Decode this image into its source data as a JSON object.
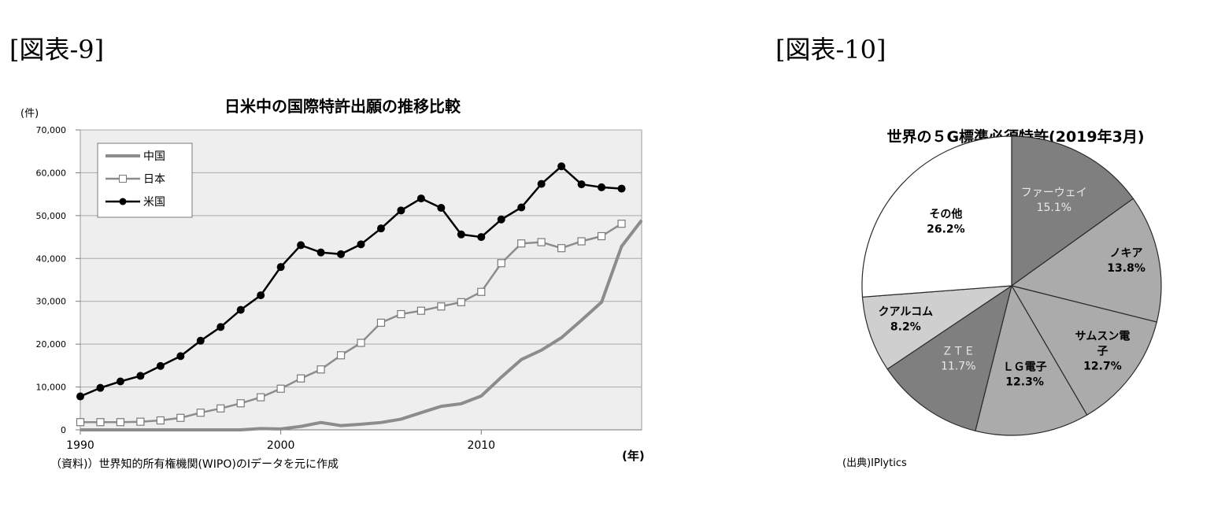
{
  "figure_labels": {
    "left": "[図表-9]",
    "right": "[図表-10]"
  },
  "chart_data": [
    {
      "type": "line",
      "title": "日米中の国際特許出願の推移比較",
      "ylabel": "(件)",
      "xlabel": "(年)",
      "source_note": "（資料)）世界知的所有権機関(WIPO)のIデータを元に作成",
      "ylim": [
        0,
        70000
      ],
      "y_ticks": [
        0,
        10000,
        20000,
        30000,
        40000,
        50000,
        60000,
        70000
      ],
      "y_tick_labels": [
        "0",
        "10,000",
        "20,000",
        "30,000",
        "40,000",
        "50,000",
        "60,000",
        "70,000"
      ],
      "xlim": [
        1990,
        2018
      ],
      "x_ticks": [
        1990,
        2000,
        2010
      ],
      "x_tick_labels": [
        "1990",
        "2000",
        "2010"
      ],
      "grid": true,
      "legend_position": "top-left",
      "x": [
        1990,
        1991,
        1992,
        1993,
        1994,
        1995,
        1996,
        1997,
        1998,
        1999,
        2000,
        2001,
        2002,
        2003,
        2004,
        2005,
        2006,
        2007,
        2008,
        2009,
        2010,
        2011,
        2012,
        2013,
        2014,
        2015,
        2016,
        2017,
        2018
      ],
      "series": [
        {
          "name": "中国",
          "marker": "none",
          "color": "#8c8c8c",
          "values": [
            0,
            0,
            0,
            0,
            0,
            0,
            0,
            0,
            0,
            300,
            200,
            800,
            1700,
            1000,
            1300,
            1700,
            2500,
            4000,
            5500,
            6100,
            7900,
            12300,
            16400,
            18600,
            21500,
            25600,
            29800,
            42800,
            48900
          ]
        },
        {
          "name": "日本",
          "marker": "square-open",
          "color": "#8c8c8c",
          "values": [
            1800,
            1800,
            1800,
            1900,
            2200,
            2800,
            4000,
            5000,
            6200,
            7600,
            9600,
            12000,
            14100,
            17400,
            20300,
            25000,
            27000,
            27800,
            28800,
            29800,
            32200,
            38900,
            43500,
            43800,
            42400,
            44000,
            45200,
            48100,
            null
          ]
        },
        {
          "name": "米国",
          "marker": "circle-filled",
          "color": "#000000",
          "values": [
            7800,
            9800,
            11300,
            12600,
            14900,
            17200,
            20800,
            24000,
            28000,
            31400,
            38000,
            43100,
            41400,
            41000,
            43300,
            47000,
            51200,
            54000,
            51800,
            45600,
            45000,
            49100,
            51900,
            57400,
            61500,
            57300,
            56600,
            56300,
            null
          ]
        }
      ]
    },
    {
      "type": "pie",
      "title": "世界の５G標準必須特許(2019年3月)",
      "source_note": "(出典)IPlytics",
      "slices": [
        {
          "label": "ファーウェイ",
          "value": 15.1,
          "value_label": "15.1%",
          "color": "#7f7f7f",
          "text_color": "#e8e8e8"
        },
        {
          "label": "ノキア",
          "value": 13.8,
          "value_label": "13.8%",
          "color": "#ababab",
          "text_color": "#000000"
        },
        {
          "label": "サムスン電子",
          "value": 12.7,
          "value_label": "12.7%",
          "color": "#ababab",
          "text_color": "#000000"
        },
        {
          "label": "ＬＧ電子",
          "value": 12.3,
          "value_label": "12.3%",
          "color": "#ababab",
          "text_color": "#000000"
        },
        {
          "label": "ＺＴＥ",
          "value": 11.7,
          "value_label": "11.7%",
          "color": "#7f7f7f",
          "text_color": "#e8e8e8"
        },
        {
          "label": "クアルコム",
          "value": 8.2,
          "value_label": "8.2%",
          "color": "#cfcfcf",
          "text_color": "#000000"
        },
        {
          "label": "その他",
          "value": 26.2,
          "value_label": "26.2%",
          "color": "#ffffff",
          "text_color": "#000000"
        }
      ]
    }
  ]
}
